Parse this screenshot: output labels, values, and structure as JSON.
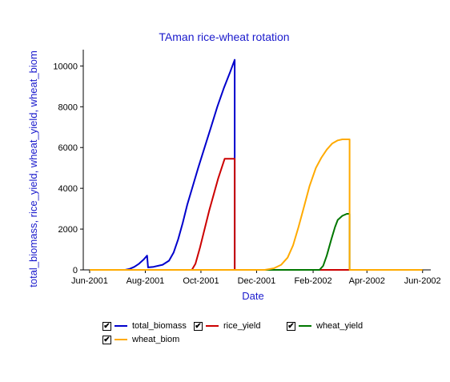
{
  "chart_data": {
    "type": "line",
    "title": "TAman rice-wheat rotation",
    "xlabel": "Date",
    "ylabel": "total_biomass, rice_yield, wheat_yield, wheat_biom",
    "xlim": [
      "2001-05-25",
      "2002-06-10"
    ],
    "ylim": [
      0,
      10800
    ],
    "x_ticks": [
      "2001-06-01",
      "2001-08-01",
      "2001-10-01",
      "2001-12-01",
      "2002-02-01",
      "2002-04-01",
      "2002-06-01"
    ],
    "x_tick_labels": [
      "Jun-2001",
      "Aug-2001",
      "Oct-2001",
      "Dec-2001",
      "Feb-2002",
      "Apr-2002",
      "Jun-2002"
    ],
    "y_ticks": [
      0,
      2000,
      4000,
      6000,
      8000,
      10000
    ],
    "y_tick_labels": [
      "0",
      "2000",
      "4000",
      "6000",
      "8000",
      "10000"
    ],
    "grid": false,
    "legend_placement": "bottom",
    "series": [
      {
        "name": "total_biomass",
        "color": "#0000cc",
        "points": [
          [
            "2001-06-01",
            0
          ],
          [
            "2001-07-10",
            0
          ],
          [
            "2001-07-15",
            50
          ],
          [
            "2001-07-20",
            150
          ],
          [
            "2001-07-25",
            300
          ],
          [
            "2001-07-30",
            500
          ],
          [
            "2001-08-03",
            700
          ],
          [
            "2001-08-04",
            120
          ],
          [
            "2001-08-10",
            150
          ],
          [
            "2001-08-20",
            250
          ],
          [
            "2001-08-27",
            450
          ],
          [
            "2001-09-01",
            850
          ],
          [
            "2001-09-06",
            1500
          ],
          [
            "2001-09-11",
            2300
          ],
          [
            "2001-09-16",
            3200
          ],
          [
            "2001-09-22",
            4100
          ],
          [
            "2001-09-28",
            5000
          ],
          [
            "2001-10-05",
            6000
          ],
          [
            "2001-10-12",
            7000
          ],
          [
            "2001-10-19",
            8000
          ],
          [
            "2001-10-26",
            8900
          ],
          [
            "2001-11-02",
            9700
          ],
          [
            "2001-11-07",
            10300
          ],
          [
            "2001-11-07",
            5500
          ],
          [
            "2001-11-07",
            0
          ],
          [
            "2002-06-01",
            0
          ]
        ]
      },
      {
        "name": "rice_yield",
        "color": "#cc0000",
        "points": [
          [
            "2001-06-01",
            0
          ],
          [
            "2001-09-21",
            0
          ],
          [
            "2001-09-25",
            300
          ],
          [
            "2001-09-30",
            1100
          ],
          [
            "2001-10-05",
            2000
          ],
          [
            "2001-10-10",
            2900
          ],
          [
            "2001-10-15",
            3700
          ],
          [
            "2001-10-20",
            4500
          ],
          [
            "2001-10-27",
            5450
          ],
          [
            "2001-11-07",
            5450
          ],
          [
            "2001-11-07",
            0
          ],
          [
            "2002-06-01",
            0
          ]
        ]
      },
      {
        "name": "wheat_yield",
        "color": "#007700",
        "points": [
          [
            "2001-06-01",
            0
          ],
          [
            "2002-02-08",
            0
          ],
          [
            "2002-02-12",
            200
          ],
          [
            "2002-02-16",
            700
          ],
          [
            "2002-02-21",
            1500
          ],
          [
            "2002-02-25",
            2100
          ],
          [
            "2002-02-28",
            2450
          ],
          [
            "2002-03-05",
            2650
          ],
          [
            "2002-03-10",
            2750
          ],
          [
            "2002-03-13",
            2750
          ],
          [
            "2002-03-13",
            0
          ],
          [
            "2002-06-01",
            0
          ]
        ]
      },
      {
        "name": "wheat_biom",
        "color": "#ffaa00",
        "points": [
          [
            "2001-06-01",
            0
          ],
          [
            "2001-12-10",
            0
          ],
          [
            "2001-12-20",
            80
          ],
          [
            "2001-12-28",
            250
          ],
          [
            "2002-01-04",
            600
          ],
          [
            "2002-01-10",
            1200
          ],
          [
            "2002-01-16",
            2100
          ],
          [
            "2002-01-22",
            3100
          ],
          [
            "2002-01-28",
            4100
          ],
          [
            "2002-02-04",
            5000
          ],
          [
            "2002-02-10",
            5500
          ],
          [
            "2002-02-16",
            5900
          ],
          [
            "2002-02-22",
            6200
          ],
          [
            "2002-02-28",
            6350
          ],
          [
            "2002-03-05",
            6400
          ],
          [
            "2002-03-13",
            6400
          ],
          [
            "2002-03-13",
            0
          ],
          [
            "2002-06-01",
            0
          ]
        ]
      }
    ]
  },
  "legend": {
    "check_glyph": "✔",
    "items": [
      {
        "label": "total_biomass",
        "color": "#0000cc"
      },
      {
        "label": "rice_yield",
        "color": "#cc0000"
      },
      {
        "label": "wheat_yield",
        "color": "#007700"
      },
      {
        "label": "wheat_biom",
        "color": "#ffaa00"
      }
    ]
  }
}
